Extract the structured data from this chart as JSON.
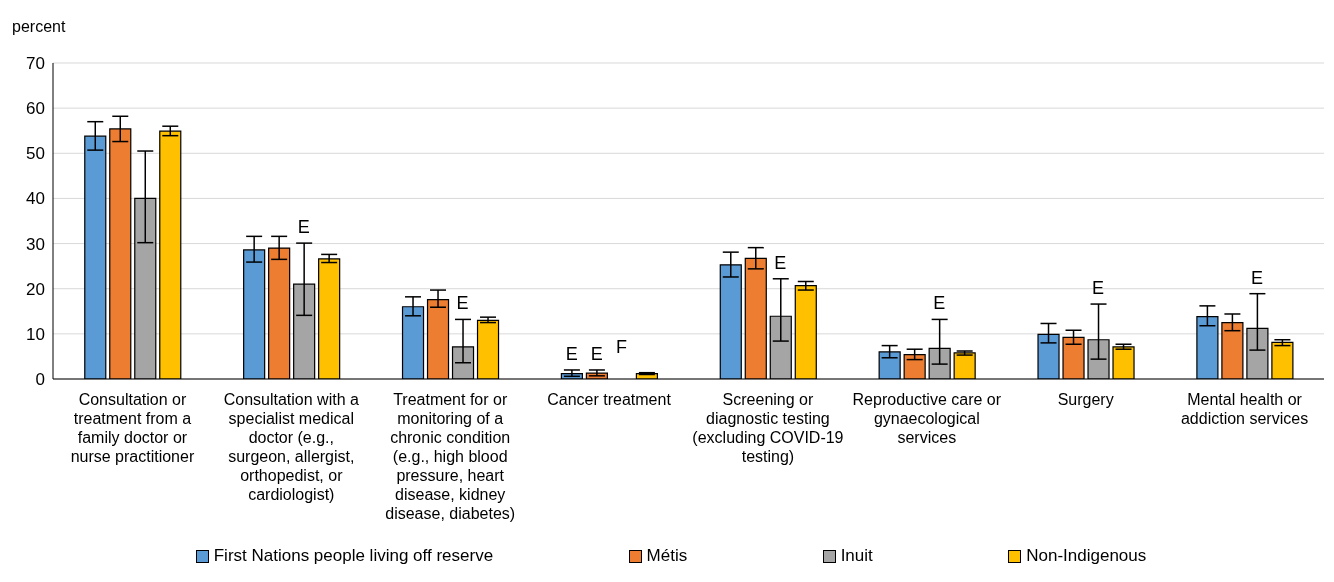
{
  "chart_data": {
    "type": "bar",
    "ylabel": "percent",
    "categories": [
      "Consultation or treatment from a family doctor or nurse practitioner",
      "Consultation with a specialist medical doctor (e.g., surgeon, allergist, orthopedist, or cardiologist)",
      "Treatment for or monitoring of a chronic condition (e.g., high blood pressure, heart disease, kidney disease, diabetes)",
      "Cancer treatment",
      "Screening or diagnostic testing (excluding COVID-19 testing)",
      "Reproductive care or gynaecological services",
      "Surgery",
      "Mental health or addiction services"
    ],
    "series": [
      {
        "name": "First Nations people living off reserve",
        "color": "#5b9bd5",
        "values": [
          53.8,
          28.6,
          16.0,
          1.2,
          25.3,
          6.0,
          9.9,
          13.8
        ],
        "errors": [
          [
            50.7,
            57.0
          ],
          [
            25.9,
            31.6
          ],
          [
            14.0,
            18.2
          ],
          [
            0.6,
            2.0
          ],
          [
            22.6,
            28.1
          ],
          [
            4.7,
            7.4
          ],
          [
            8.0,
            12.3
          ],
          [
            11.8,
            16.2
          ]
        ],
        "value_labels": [
          null,
          null,
          null,
          "E",
          null,
          null,
          null,
          null
        ]
      },
      {
        "name": "Métis",
        "color": "#ed7d31",
        "values": [
          55.4,
          29.0,
          17.6,
          1.3,
          26.7,
          5.4,
          9.2,
          12.5
        ],
        "errors": [
          [
            52.6,
            58.2
          ],
          [
            26.5,
            31.6
          ],
          [
            15.9,
            19.7
          ],
          [
            0.7,
            2.0
          ],
          [
            24.4,
            29.1
          ],
          [
            4.3,
            6.6
          ],
          [
            7.7,
            10.8
          ],
          [
            10.7,
            14.4
          ]
        ],
        "value_labels": [
          null,
          null,
          null,
          "E",
          null,
          null,
          null,
          null
        ]
      },
      {
        "name": "Inuit",
        "color": "#a5a5a5",
        "values": [
          40.0,
          21.0,
          7.1,
          null,
          13.9,
          6.8,
          8.7,
          11.2
        ],
        "errors": [
          [
            30.2,
            50.5
          ],
          [
            14.1,
            30.1
          ],
          [
            3.6,
            13.2
          ],
          null,
          [
            8.4,
            22.2
          ],
          [
            3.3,
            13.2
          ],
          [
            4.4,
            16.6
          ],
          [
            6.4,
            18.9
          ]
        ],
        "value_labels": [
          null,
          "E",
          "E",
          "F",
          "E",
          "E",
          "E",
          "E"
        ]
      },
      {
        "name": "Non-Indigenous",
        "color": "#ffc000",
        "values": [
          54.9,
          26.6,
          13.0,
          1.2,
          20.7,
          5.8,
          7.1,
          8.1
        ],
        "errors": [
          [
            53.9,
            56.0
          ],
          [
            25.8,
            27.6
          ],
          [
            12.5,
            13.7
          ],
          [
            1.0,
            1.4
          ],
          [
            19.7,
            21.6
          ],
          [
            5.3,
            6.2
          ],
          [
            6.6,
            7.7
          ],
          [
            7.4,
            8.7
          ]
        ],
        "value_labels": [
          null,
          null,
          null,
          null,
          null,
          null,
          null,
          null
        ]
      }
    ],
    "ylim": [
      0,
      70
    ],
    "yticks": [
      0,
      10,
      20,
      30,
      40,
      50,
      60,
      70
    ],
    "grid": "y",
    "legend": "bottom"
  }
}
